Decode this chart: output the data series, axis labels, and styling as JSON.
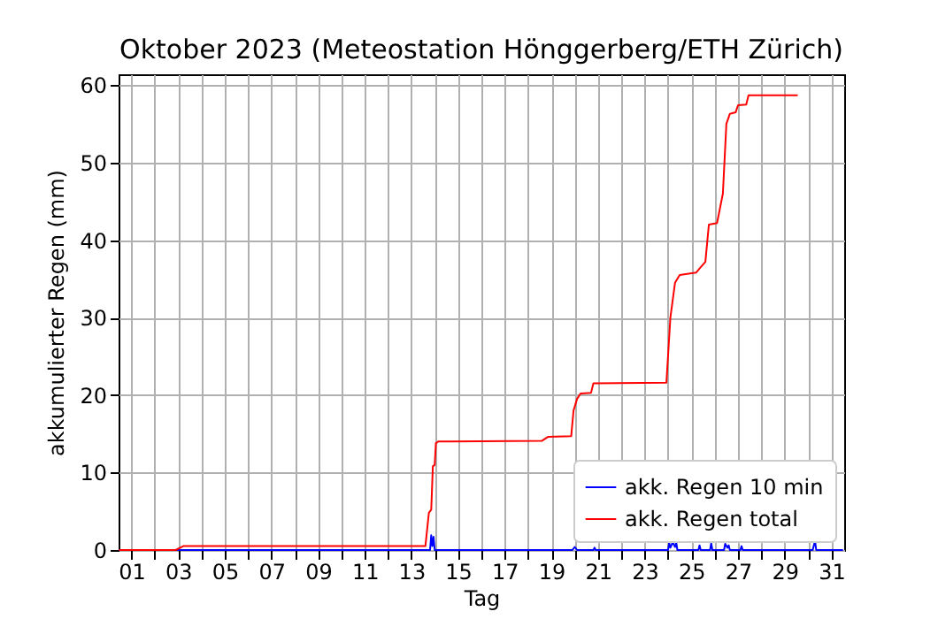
{
  "chart_data": {
    "type": "line",
    "title": "Oktober 2023  (Meteostation Hönggerberg/ETH Zürich)",
    "xlabel": "Tag",
    "ylabel": "akkumulierter Regen (mm)",
    "xlim": [
      0.45,
      31.55
    ],
    "ylim": [
      0,
      61.4
    ],
    "xticks": [
      {
        "value": 1,
        "label": "01"
      },
      {
        "value": 2,
        "label": null
      },
      {
        "value": 3,
        "label": "03"
      },
      {
        "value": 4,
        "label": null
      },
      {
        "value": 5,
        "label": "05"
      },
      {
        "value": 6,
        "label": null
      },
      {
        "value": 7,
        "label": "07"
      },
      {
        "value": 8,
        "label": null
      },
      {
        "value": 9,
        "label": "09"
      },
      {
        "value": 10,
        "label": null
      },
      {
        "value": 11,
        "label": "11"
      },
      {
        "value": 12,
        "label": null
      },
      {
        "value": 13,
        "label": "13"
      },
      {
        "value": 14,
        "label": null
      },
      {
        "value": 15,
        "label": "15"
      },
      {
        "value": 16,
        "label": null
      },
      {
        "value": 17,
        "label": "17"
      },
      {
        "value": 18,
        "label": null
      },
      {
        "value": 19,
        "label": "19"
      },
      {
        "value": 20,
        "label": null
      },
      {
        "value": 21,
        "label": "21"
      },
      {
        "value": 22,
        "label": null
      },
      {
        "value": 23,
        "label": "23"
      },
      {
        "value": 24,
        "label": null
      },
      {
        "value": 25,
        "label": "25"
      },
      {
        "value": 26,
        "label": null
      },
      {
        "value": 27,
        "label": "27"
      },
      {
        "value": 28,
        "label": null
      },
      {
        "value": 29,
        "label": "29"
      },
      {
        "value": 30,
        "label": null
      },
      {
        "value": 31,
        "label": "31"
      }
    ],
    "yticks": [
      0,
      10,
      20,
      30,
      40,
      50,
      60
    ],
    "grid": true,
    "legend": "bottom right",
    "series": [
      {
        "name": "akk. Regen 10 min",
        "color": "#0000ff",
        "x": [
          0.47,
          13.8,
          13.85,
          13.9,
          13.95,
          14.0,
          19.9,
          20.0,
          20.1,
          20.8,
          20.85,
          20.9,
          24.0,
          24.05,
          24.1,
          24.2,
          24.3,
          24.35,
          24.4,
          25.3,
          25.35,
          25.4,
          25.8,
          25.85,
          25.9,
          26.4,
          26.45,
          26.55,
          26.6,
          26.65,
          27.1,
          27.15,
          27.2,
          30.2,
          30.3,
          30.35,
          31.5
        ],
        "values": [
          0,
          0,
          1.9,
          0.5,
          1.7,
          0,
          0,
          0.4,
          0,
          0,
          0.3,
          0,
          0,
          0.9,
          0.3,
          1.0,
          0.4,
          1.0,
          0,
          0,
          0.6,
          0,
          0,
          0.9,
          0,
          0,
          0.8,
          0.3,
          0.6,
          0,
          0,
          0.5,
          0,
          0,
          1.2,
          0,
          0
        ]
      },
      {
        "name": "akk. Regen total",
        "color": "#ff0000",
        "x": [
          0.47,
          2.9,
          3.22,
          13.6,
          13.75,
          13.85,
          13.92,
          14.0,
          14.05,
          14.15,
          18.6,
          18.85,
          19.85,
          19.95,
          20.1,
          20.25,
          20.7,
          20.8,
          23.93,
          24.1,
          24.3,
          24.5,
          25.2,
          25.4,
          25.6,
          25.75,
          26.1,
          26.35,
          26.5,
          26.65,
          26.9,
          27.0,
          27.35,
          27.45,
          29.56
        ],
        "values": [
          0,
          0,
          0.5,
          0.5,
          4.8,
          5.2,
          10.8,
          11,
          13.8,
          14.0,
          14.1,
          14.6,
          14.7,
          18,
          19.5,
          20.2,
          20.3,
          21.5,
          21.6,
          30,
          34.5,
          35.5,
          35.8,
          36.5,
          37.2,
          42,
          42.2,
          46,
          55,
          56.3,
          56.5,
          57.4,
          57.5,
          58.7,
          58.7
        ]
      }
    ]
  }
}
